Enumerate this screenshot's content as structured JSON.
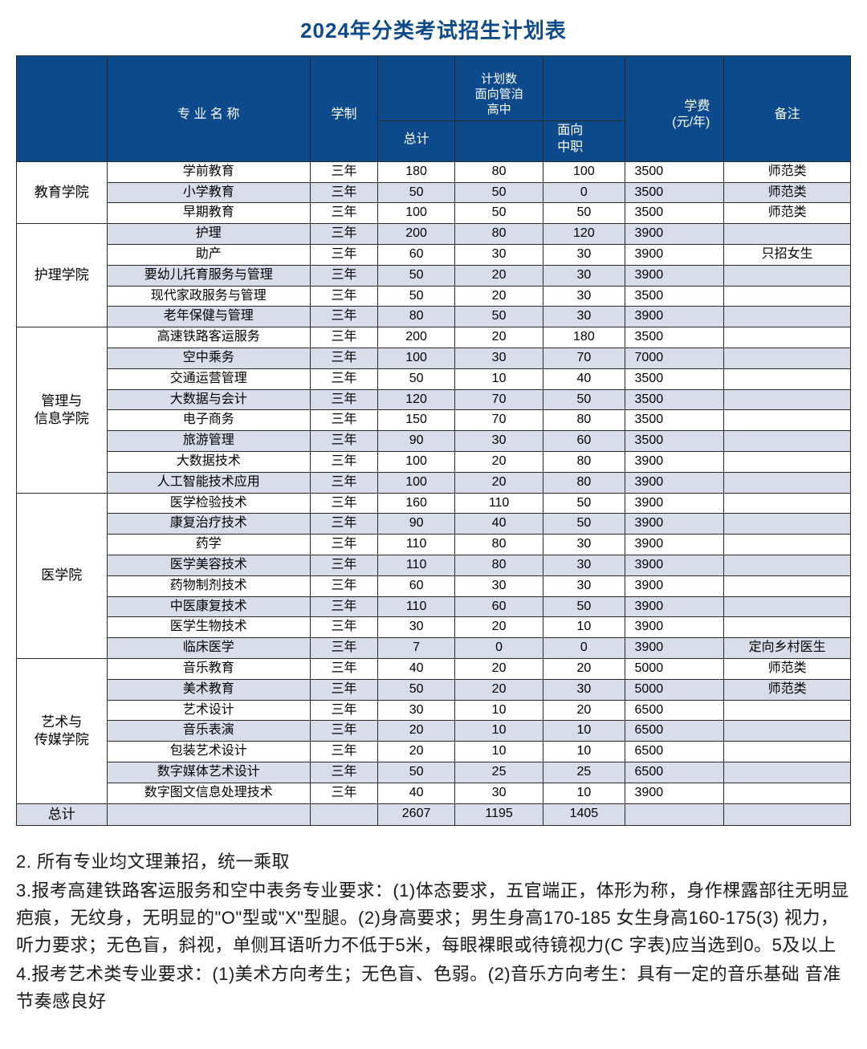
{
  "title": "2024年分类考试招生计划表",
  "header": {
    "dept": "",
    "major": "专 业 名 称",
    "duration": "学制",
    "total_top": "",
    "total_bottom": "总计",
    "plan_top": "计划数",
    "hs_top": "面向管洎",
    "hs_bottom": "高中",
    "voc_top": "",
    "voc_mid": "面向",
    "voc_bottom": "中职",
    "fee_top": "学费",
    "fee_bottom": "(元/年)",
    "note": "备注"
  },
  "groups": [
    {
      "dept": "教育学院",
      "rows": [
        {
          "major": "学前教育",
          "dur": "三年",
          "total": "180",
          "hs": "80",
          "voc": "100",
          "fee": "3500",
          "note": "师范类"
        },
        {
          "major": "小学教育",
          "dur": "三年",
          "total": "50",
          "hs": "50",
          "voc": "0",
          "fee": "3500",
          "note": "师范类"
        },
        {
          "major": "早期教育",
          "dur": "三年",
          "total": "100",
          "hs": "50",
          "voc": "50",
          "fee": "3500",
          "note": "师范类"
        }
      ]
    },
    {
      "dept": "护理学院",
      "rows": [
        {
          "major": "护理",
          "dur": "三年",
          "total": "200",
          "hs": "80",
          "voc": "120",
          "fee": "3900",
          "note": ""
        },
        {
          "major": "助产",
          "dur": "三年",
          "total": "60",
          "hs": "30",
          "voc": "30",
          "fee": "3900",
          "note": "只招女生"
        },
        {
          "major": "要幼儿托育服务与管理",
          "dur": "三年",
          "total": "50",
          "hs": "20",
          "voc": "30",
          "fee": "3900",
          "note": ""
        },
        {
          "major": "现代家政服务与管理",
          "dur": "三年",
          "total": "50",
          "hs": "20",
          "voc": "30",
          "fee": "3500",
          "note": ""
        },
        {
          "major": "老年保健与管理",
          "dur": "三年",
          "total": "80",
          "hs": "50",
          "voc": "30",
          "fee": "3900",
          "note": ""
        }
      ]
    },
    {
      "dept": "管理与\n信息学院",
      "rows": [
        {
          "major": "高速铁路客运服务",
          "dur": "三年",
          "total": "200",
          "hs": "20",
          "voc": "180",
          "fee": "3500",
          "note": ""
        },
        {
          "major": "空中乘务",
          "dur": "三年",
          "total": "100",
          "hs": "30",
          "voc": "70",
          "fee": "7000",
          "note": ""
        },
        {
          "major": "交通运营管理",
          "dur": "三年",
          "total": "50",
          "hs": "10",
          "voc": "40",
          "fee": "3500",
          "note": ""
        },
        {
          "major": "大数据与会计",
          "dur": "三年",
          "total": "120",
          "hs": "70",
          "voc": "50",
          "fee": "3500",
          "note": ""
        },
        {
          "major": "电子商务",
          "dur": "三年",
          "total": "150",
          "hs": "70",
          "voc": "80",
          "fee": "3500",
          "note": ""
        },
        {
          "major": "旅游管理",
          "dur": "三年",
          "total": "90",
          "hs": "30",
          "voc": "60",
          "fee": "3500",
          "note": ""
        },
        {
          "major": "大数据技术",
          "dur": "三年",
          "total": "100",
          "hs": "20",
          "voc": "80",
          "fee": "3900",
          "note": ""
        },
        {
          "major": "人工智能技术应用",
          "dur": "三年",
          "total": "100",
          "hs": "20",
          "voc": "80",
          "fee": "3900",
          "note": ""
        }
      ]
    },
    {
      "dept": "医学院",
      "rows": [
        {
          "major": "医学检验技术",
          "dur": "三年",
          "total": "160",
          "hs": "110",
          "voc": "50",
          "fee": "3900",
          "note": ""
        },
        {
          "major": "康复治疗技术",
          "dur": "三年",
          "total": "90",
          "hs": "40",
          "voc": "50",
          "fee": "3900",
          "note": ""
        },
        {
          "major": "药学",
          "dur": "三年",
          "total": "110",
          "hs": "80",
          "voc": "30",
          "fee": "3900",
          "note": ""
        },
        {
          "major": "医学美容技术",
          "dur": "三年",
          "total": "110",
          "hs": "80",
          "voc": "30",
          "fee": "3900",
          "note": ""
        },
        {
          "major": "药物制剂技术",
          "dur": "三年",
          "total": "60",
          "hs": "30",
          "voc": "30",
          "fee": "3900",
          "note": ""
        },
        {
          "major": "中医康复技术",
          "dur": "三年",
          "total": "110",
          "hs": "60",
          "voc": "50",
          "fee": "3900",
          "note": ""
        },
        {
          "major": "医学生物技术",
          "dur": "三年",
          "total": "30",
          "hs": "20",
          "voc": "10",
          "fee": "3900",
          "note": ""
        },
        {
          "major": "临床医学",
          "dur": "三年",
          "total": "7",
          "hs": "0",
          "voc": "0",
          "fee": "3900",
          "note": "定向乡村医生"
        }
      ]
    },
    {
      "dept": "艺术与\n传媒学院",
      "rows": [
        {
          "major": "音乐教育",
          "dur": "三年",
          "total": "40",
          "hs": "20",
          "voc": "20",
          "fee": "5000",
          "note": "师范类"
        },
        {
          "major": "美术教育",
          "dur": "三年",
          "total": "50",
          "hs": "20",
          "voc": "30",
          "fee": "5000",
          "note": "师范类"
        },
        {
          "major": "艺术设计",
          "dur": "三年",
          "total": "30",
          "hs": "10",
          "voc": "20",
          "fee": "6500",
          "note": ""
        },
        {
          "major": "音乐表演",
          "dur": "三年",
          "total": "20",
          "hs": "10",
          "voc": "10",
          "fee": "6500",
          "note": ""
        },
        {
          "major": "包装艺术设计",
          "dur": "三年",
          "total": "20",
          "hs": "10",
          "voc": "10",
          "fee": "6500",
          "note": ""
        },
        {
          "major": "数字媒体艺术设计",
          "dur": "三年",
          "total": "50",
          "hs": "25",
          "voc": "25",
          "fee": "6500",
          "note": ""
        },
        {
          "major": "数字图文信息处理技术",
          "dur": "三年",
          "total": "40",
          "hs": "30",
          "voc": "10",
          "fee": "3900",
          "note": ""
        }
      ]
    }
  ],
  "summary": {
    "label": "总计",
    "total": "2607",
    "hs": "1195",
    "voc": "1405"
  },
  "notes": [
    "2. 所有专业均文理兼招，统一乘取",
    "3.报考高建铁路客运服务和空中表务专业要求：(1)体态要求，五官端正，体形为称，身作棵露部往无明显疤痕，无纹身，无明显的\"O\"型或\"X\"型腿。(2)身高要求；男生身高170-185   女生身高160-175(3) 视力，听力要求；无色盲，斜视，单侧耳语听力不低于5米，每眼裸眼或待镜视力(C 字表)应当选到0。5及以上",
    "4.报考艺术类专业要求：(1)美术方向考生；无色盲、色弱。(2)音乐方向考生：具有一定的音乐基础   音准   节奏感良好"
  ],
  "style": {
    "header_bg": "#0d4a8c",
    "header_fg": "#ffffff",
    "alt_row_bg": "#d7dde9",
    "border_color": "#2a2a2a",
    "title_color": "#0d4a8c"
  }
}
